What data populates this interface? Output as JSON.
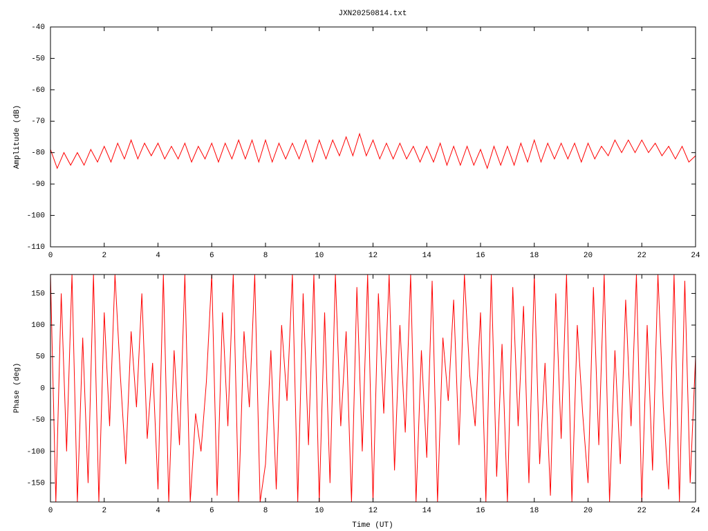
{
  "chart_data": [
    {
      "type": "line",
      "title": "JXN20250814.txt",
      "ylabel": "Amplitude (dB)",
      "xlim": [
        0,
        24
      ],
      "xticks": [
        0,
        2,
        4,
        6,
        8,
        10,
        12,
        14,
        16,
        18,
        20,
        22,
        24
      ],
      "ylim": [
        -110,
        -40
      ],
      "yticks": [
        -40,
        -50,
        -60,
        -70,
        -80,
        -90,
        -100,
        -110
      ],
      "series": [
        {
          "color": "#ff0000",
          "x": [
            0,
            0.25,
            0.5,
            0.75,
            1,
            1.25,
            1.5,
            1.75,
            2,
            2.25,
            2.5,
            2.75,
            3,
            3.25,
            3.5,
            3.75,
            4,
            4.25,
            4.5,
            4.75,
            5,
            5.25,
            5.5,
            5.75,
            6,
            6.25,
            6.5,
            6.75,
            7,
            7.25,
            7.5,
            7.75,
            8,
            8.25,
            8.5,
            8.75,
            9,
            9.25,
            9.5,
            9.75,
            10,
            10.25,
            10.5,
            10.75,
            11,
            11.25,
            11.5,
            11.75,
            12,
            12.25,
            12.5,
            12.75,
            13,
            13.25,
            13.5,
            13.75,
            14,
            14.25,
            14.5,
            14.75,
            15,
            15.25,
            15.5,
            15.75,
            16,
            16.25,
            16.5,
            16.75,
            17,
            17.25,
            17.5,
            17.75,
            18,
            18.25,
            18.5,
            18.75,
            19,
            19.25,
            19.5,
            19.75,
            20,
            20.25,
            20.5,
            20.75,
            21,
            21.25,
            21.5,
            21.75,
            22,
            22.25,
            22.5,
            22.75,
            23,
            23.25,
            23.5,
            23.75,
            24
          ],
          "values": [
            -79,
            -85,
            -80,
            -84,
            -80,
            -84,
            -79,
            -83,
            -78,
            -83,
            -77,
            -82,
            -76,
            -82,
            -77,
            -81,
            -77,
            -82,
            -78,
            -82,
            -77,
            -83,
            -78,
            -82,
            -77,
            -83,
            -77,
            -82,
            -76,
            -82,
            -76,
            -83,
            -76,
            -83,
            -77,
            -82,
            -77,
            -82,
            -76,
            -83,
            -76,
            -82,
            -76,
            -81,
            -75,
            -81,
            -74,
            -81,
            -76,
            -82,
            -77,
            -82,
            -77,
            -82,
            -78,
            -83,
            -78,
            -83,
            -77,
            -84,
            -78,
            -84,
            -78,
            -84,
            -79,
            -85,
            -78,
            -84,
            -78,
            -84,
            -77,
            -83,
            -76,
            -83,
            -77,
            -82,
            -77,
            -82,
            -77,
            -83,
            -77,
            -82,
            -78,
            -81,
            -76,
            -80,
            -76,
            -80,
            -76,
            -80,
            -77,
            -81,
            -78,
            -82,
            -78,
            -83,
            -81
          ]
        }
      ],
      "grid": false
    },
    {
      "type": "line",
      "ylabel": "Phase (deg)",
      "xlabel": "Time (UT)",
      "xlim": [
        0,
        24
      ],
      "xticks": [
        0,
        2,
        4,
        6,
        8,
        10,
        12,
        14,
        16,
        18,
        20,
        22,
        24
      ],
      "ylim": [
        -180,
        180
      ],
      "yticks": [
        150,
        100,
        50,
        0,
        -50,
        -100,
        -150
      ],
      "series": [
        {
          "color": "#ff0000",
          "x": [
            0,
            0.2,
            0.4,
            0.6,
            0.8,
            1,
            1.2,
            1.4,
            1.6,
            1.8,
            2,
            2.2,
            2.4,
            2.6,
            2.8,
            3,
            3.2,
            3.4,
            3.6,
            3.8,
            4,
            4.2,
            4.4,
            4.6,
            4.8,
            5,
            5.2,
            5.4,
            5.6,
            5.8,
            6,
            6.2,
            6.4,
            6.6,
            6.8,
            7,
            7.2,
            7.4,
            7.6,
            7.8,
            8,
            8.2,
            8.4,
            8.6,
            8.8,
            9,
            9.2,
            9.4,
            9.6,
            9.8,
            10,
            10.2,
            10.4,
            10.6,
            10.8,
            11,
            11.2,
            11.4,
            11.6,
            11.8,
            12,
            12.2,
            12.4,
            12.6,
            12.8,
            13,
            13.2,
            13.4,
            13.6,
            13.8,
            14,
            14.2,
            14.4,
            14.6,
            14.8,
            15,
            15.2,
            15.4,
            15.6,
            15.8,
            16,
            16.2,
            16.4,
            16.6,
            16.8,
            17,
            17.2,
            17.4,
            17.6,
            17.8,
            18,
            18.2,
            18.4,
            18.6,
            18.8,
            19,
            19.2,
            19.4,
            19.6,
            19.8,
            20,
            20.2,
            20.4,
            20.6,
            20.8,
            21,
            21.2,
            21.4,
            21.6,
            21.8,
            22,
            22.2,
            22.4,
            22.6,
            22.8,
            23,
            23.2,
            23.4,
            23.6,
            23.8,
            24
          ],
          "values": [
            180,
            -180,
            150,
            -100,
            180,
            -180,
            80,
            -150,
            180,
            -180,
            120,
            -60,
            180,
            20,
            -120,
            90,
            -30,
            150,
            -80,
            40,
            -160,
            180,
            -180,
            60,
            -90,
            180,
            -180,
            -40,
            -100,
            10,
            180,
            -170,
            120,
            -60,
            180,
            -180,
            90,
            -30,
            180,
            -180,
            -120,
            60,
            -160,
            100,
            -20,
            180,
            -180,
            150,
            -90,
            180,
            -180,
            120,
            -150,
            180,
            -60,
            90,
            -180,
            160,
            -100,
            180,
            -180,
            150,
            -40,
            180,
            -130,
            100,
            -70,
            180,
            -180,
            60,
            -110,
            170,
            -180,
            80,
            -20,
            140,
            -90,
            180,
            20,
            -60,
            120,
            -180,
            180,
            -140,
            70,
            -180,
            160,
            -60,
            130,
            -150,
            180,
            -120,
            40,
            -170,
            150,
            -80,
            180,
            -180,
            100,
            -40,
            -150,
            160,
            -90,
            180,
            -180,
            60,
            -120,
            140,
            -60,
            180,
            -180,
            100,
            -130,
            180,
            -30,
            -160,
            180,
            -180,
            170,
            -150,
            50
          ]
        }
      ],
      "grid": false
    }
  ]
}
